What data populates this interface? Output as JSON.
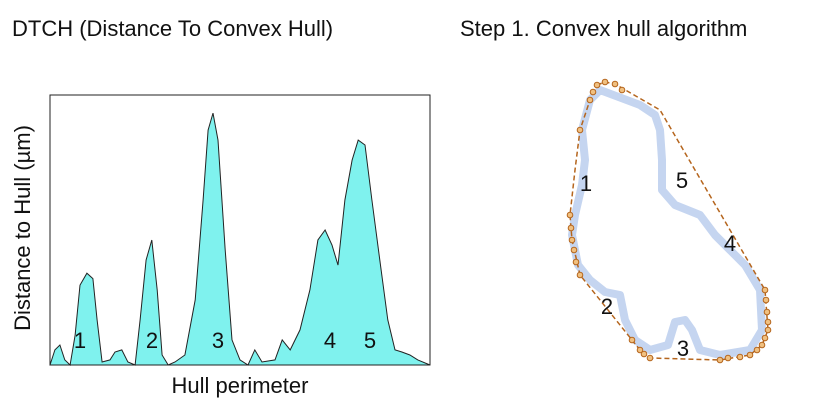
{
  "chart_data": {
    "type": "area",
    "title": "DTCH (Distance To Convex Hull)",
    "x_label": "Hull perimeter",
    "y_label": "Distance to Hull (µm)",
    "color": "#7ff2ee",
    "xlim": [
      0,
      100
    ],
    "ylim": [
      0,
      100
    ],
    "x": [
      0,
      1.3,
      2.6,
      3.9,
      5.3,
      6.6,
      7.9,
      9.7,
      11.3,
      12.4,
      13.7,
      15.8,
      17.1,
      18.9,
      20.5,
      22.4,
      23.7,
      25.3,
      26.8,
      28.2,
      29.5,
      31.1,
      32.9,
      35.5,
      38.2,
      40.3,
      41.6,
      42.9,
      44.2,
      46.1,
      47.9,
      50,
      52.1,
      53.9,
      55.8,
      59.2,
      61.1,
      63.2,
      65.8,
      68.4,
      70.5,
      72.4,
      74.2,
      75.8,
      77.6,
      79.5,
      81.1,
      82.9,
      84.7,
      86.8,
      88.9,
      90.8,
      92.6,
      94.7,
      96.8,
      100
    ],
    "values": [
      0,
      5.6,
      7.4,
      1.9,
      0,
      11,
      29.6,
      34,
      32,
      16.7,
      1.1,
      1.9,
      4.8,
      5.6,
      1.1,
      0,
      16.7,
      38.9,
      46.3,
      27.8,
      3.7,
      0,
      1.1,
      3.7,
      24.1,
      61.1,
      87,
      93.3,
      83.3,
      42.6,
      9.3,
      1.9,
      0,
      5.6,
      1.1,
      1.9,
      9.3,
      5.6,
      13,
      27.8,
      46.3,
      50,
      44.4,
      37,
      61.1,
      75.9,
      83.3,
      81.5,
      61.1,
      38.9,
      16.7,
      5.6,
      4.8,
      3.7,
      1.9,
      0
    ],
    "annotations": [
      "1",
      "2",
      "3",
      "4",
      "5"
    ]
  },
  "diagram": {
    "title": "Step 1. Convex hull algorithm",
    "labels": [
      "1",
      "5",
      "4",
      "2",
      "3"
    ]
  }
}
